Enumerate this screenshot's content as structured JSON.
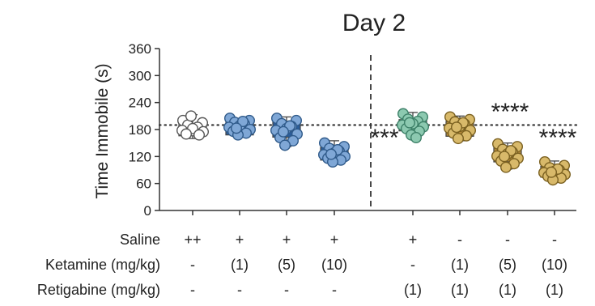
{
  "chart_data": {
    "type": "scatter",
    "title": "Day 2",
    "ylabel": "Time Immobile (s)",
    "ylim": [
      0,
      360
    ],
    "yticks": [
      0,
      60,
      120,
      180,
      240,
      300,
      360
    ],
    "reference_line_y": 190,
    "row_labels": [
      "Saline",
      "Ketamine (mg/kg)",
      "Retigabine (mg/kg)"
    ],
    "groups": [
      {
        "saline": "++",
        "ketamine": "-",
        "retigabine": "-",
        "color": "#ffffff",
        "stroke": "#555555",
        "box": [
          166,
          178,
          193
        ],
        "whisker": [
          160,
          213
        ],
        "significance": "",
        "points": [
          200,
          195,
          190,
          185,
          182,
          178,
          175,
          170,
          168,
          210
        ]
      },
      {
        "saline": "+",
        "ketamine": "(1)",
        "retigabine": "-",
        "color": "#7fa7d6",
        "stroke": "#2f5a8a",
        "box": [
          168,
          182,
          198
        ],
        "whisker": [
          165,
          205
        ],
        "significance": "",
        "points": [
          205,
          200,
          196,
          192,
          188,
          185,
          180,
          176,
          172,
          168,
          198,
          183
        ]
      },
      {
        "saline": "+",
        "ketamine": "(5)",
        "retigabine": "-",
        "color": "#7fa7d6",
        "stroke": "#2f5a8a",
        "box": [
          163,
          178,
          196
        ],
        "whisker": [
          142,
          208
        ],
        "significance": "",
        "points": [
          205,
          200,
          193,
          187,
          182,
          178,
          170,
          162,
          155,
          145,
          188,
          175
        ]
      },
      {
        "saline": "+",
        "ketamine": "(10)",
        "retigabine": "-",
        "color": "#7fa7d6",
        "stroke": "#2f5a8a",
        "box": [
          112,
          124,
          140
        ],
        "whisker": [
          105,
          155
        ],
        "significance": "***",
        "points": [
          150,
          142,
          138,
          132,
          128,
          124,
          120,
          116,
          112,
          108,
          135,
          125
        ]
      },
      {
        "saline": "+",
        "ketamine": "-",
        "retigabine": "(1)",
        "color": "#8cc9b0",
        "stroke": "#3d8068",
        "box": [
          177,
          190,
          202
        ],
        "whisker": [
          160,
          218
        ],
        "significance": "",
        "points": [
          215,
          208,
          203,
          198,
          193,
          190,
          186,
          182,
          176,
          168,
          162,
          195
        ]
      },
      {
        "saline": "-",
        "ketamine": "(1)",
        "retigabine": "(1)",
        "color": "#d8b96a",
        "stroke": "#7a6020",
        "box": [
          165,
          180,
          198
        ],
        "whisker": [
          155,
          210
        ],
        "significance": "****",
        "points": [
          208,
          202,
          197,
          192,
          187,
          183,
          178,
          172,
          166,
          160,
          195,
          185
        ]
      },
      {
        "saline": "-",
        "ketamine": "(5)",
        "retigabine": "(1)",
        "color": "#d8b96a",
        "stroke": "#7a6020",
        "box": [
          108,
          125,
          140
        ],
        "whisker": [
          92,
          150
        ],
        "significance": "****",
        "points": [
          148,
          142,
          136,
          130,
          126,
          121,
          116,
          110,
          104,
          96,
          133,
          120
        ]
      },
      {
        "saline": "-",
        "ketamine": "(10)",
        "retigabine": "(1)",
        "color": "#d8b96a",
        "stroke": "#7a6020",
        "box": [
          74,
          86,
          98
        ],
        "whisker": [
          66,
          110
        ],
        "significance": "",
        "points": [
          108,
          100,
          95,
          90,
          87,
          84,
          80,
          76,
          72,
          68,
          92,
          85
        ]
      }
    ]
  }
}
